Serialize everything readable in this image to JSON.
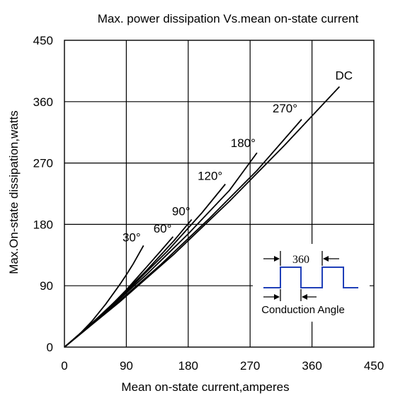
{
  "chart_data": {
    "type": "line",
    "title": "Max. power dissipation Vs.mean on-state current",
    "xlabel": "Mean on-state current,amperes",
    "ylabel": "Max.On-state dissipation,watts",
    "xlim": [
      0,
      450
    ],
    "ylim": [
      0,
      450
    ],
    "xticks": [
      "0",
      "90",
      "180",
      "270",
      "360",
      "450"
    ],
    "yticks": [
      "0",
      "90",
      "180",
      "270",
      "360",
      "450"
    ],
    "grid": true,
    "legend": "none",
    "series": [
      {
        "name": "30°",
        "x": [
          0,
          20,
          40,
          60,
          80,
          90,
          100,
          115
        ],
        "y": [
          0,
          17,
          38,
          63,
          91,
          106,
          122,
          149
        ]
      },
      {
        "name": "60°",
        "x": [
          0,
          30,
          60,
          90,
          120,
          140,
          158
        ],
        "y": [
          0,
          25,
          53,
          84,
          118,
          141,
          162
        ]
      },
      {
        "name": "90°",
        "x": [
          0,
          40,
          80,
          120,
          160,
          175,
          185
        ],
        "y": [
          0,
          35,
          73,
          113,
          157,
          175,
          187
        ]
      },
      {
        "name": "120°",
        "x": [
          0,
          50,
          100,
          150,
          200,
          234
        ],
        "y": [
          0,
          44,
          91,
          141,
          197,
          239
        ]
      },
      {
        "name": "180°",
        "x": [
          0,
          60,
          120,
          180,
          240,
          280
        ],
        "y": [
          0,
          52,
          107,
          166,
          230,
          285
        ]
      },
      {
        "name": "270°",
        "x": [
          0,
          70,
          140,
          210,
          280,
          345
        ],
        "y": [
          0,
          59,
          121,
          188,
          259,
          334
        ]
      },
      {
        "name": "DC",
        "x": [
          0,
          80,
          160,
          240,
          320,
          400
        ],
        "y": [
          0,
          66,
          137,
          214,
          296,
          382
        ]
      }
    ],
    "annotations": [
      "30°",
      "60°",
      "90°",
      "120°",
      "180°",
      "270°",
      "DC"
    ]
  },
  "inset": {
    "period_label": "360",
    "caption": "Conduction Angle"
  }
}
